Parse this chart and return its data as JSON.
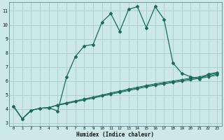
{
  "xlabel": "Humidex (Indice chaleur)",
  "background_color": "#cce8e8",
  "grid_color": "#aacccc",
  "line_color": "#1a6b5a",
  "xlim": [
    -0.5,
    23.5
  ],
  "ylim": [
    2.8,
    11.6
  ],
  "xticks": [
    0,
    1,
    2,
    3,
    4,
    5,
    6,
    7,
    8,
    9,
    10,
    11,
    12,
    13,
    14,
    15,
    16,
    17,
    18,
    19,
    20,
    21,
    22,
    23
  ],
  "yticks": [
    3,
    4,
    5,
    6,
    7,
    8,
    9,
    10,
    11
  ],
  "series_main": [
    4.2,
    3.3,
    3.9,
    4.05,
    4.1,
    3.85,
    6.3,
    7.75,
    8.5,
    8.6,
    10.2,
    10.8,
    9.55,
    11.1,
    11.3,
    9.8,
    11.3,
    10.4,
    7.3,
    6.55,
    6.3,
    6.15,
    6.5,
    6.6
  ],
  "series_linear": [
    [
      4.2,
      3.3,
      3.9,
      4.05,
      4.1,
      4.3,
      4.45,
      4.58,
      4.72,
      4.85,
      5.0,
      5.15,
      5.28,
      5.42,
      5.55,
      5.68,
      5.8,
      5.9,
      6.0,
      6.1,
      6.2,
      6.3,
      6.42,
      6.55
    ],
    [
      4.2,
      3.3,
      3.9,
      4.05,
      4.1,
      4.28,
      4.42,
      4.55,
      4.68,
      4.82,
      4.96,
      5.1,
      5.23,
      5.37,
      5.5,
      5.63,
      5.74,
      5.84,
      5.94,
      6.04,
      6.14,
      6.24,
      6.35,
      6.48
    ],
    [
      4.2,
      3.3,
      3.9,
      4.05,
      4.1,
      4.26,
      4.38,
      4.51,
      4.64,
      4.77,
      4.91,
      5.05,
      5.18,
      5.31,
      5.44,
      5.57,
      5.68,
      5.78,
      5.88,
      5.98,
      6.08,
      6.18,
      6.28,
      6.41
    ]
  ]
}
